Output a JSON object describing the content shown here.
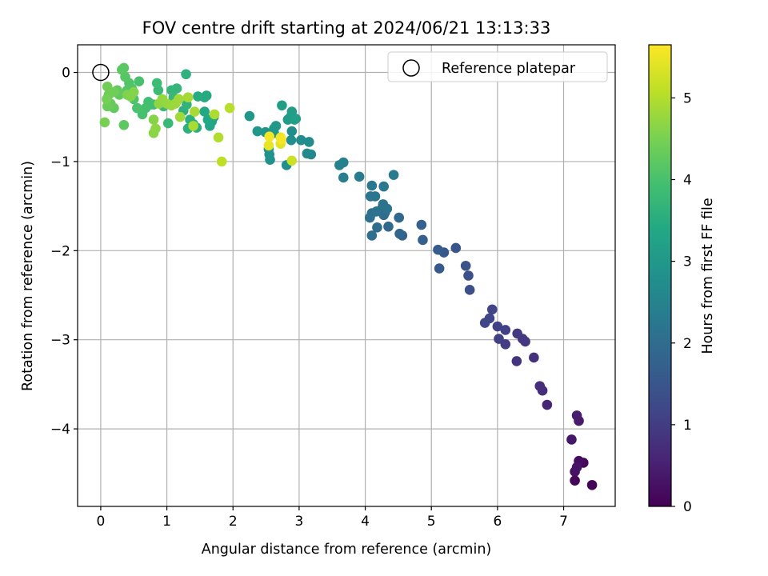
{
  "chart_data": {
    "type": "scatter",
    "title": "FOV centre drift starting at 2024/06/21 13:13:33",
    "xlabel": "Angular distance from reference (arcmin)",
    "ylabel": "Rotation from reference (arcmin)",
    "xlim": [
      -0.35,
      7.78
    ],
    "ylim": [
      -4.87,
      0.31
    ],
    "xticks": [
      0,
      1,
      2,
      3,
      4,
      5,
      6,
      7
    ],
    "xtick_labels": [
      "0",
      "1",
      "2",
      "3",
      "4",
      "5",
      "6",
      "7"
    ],
    "yticks": [
      0,
      -1,
      -2,
      -3,
      -4
    ],
    "ytick_labels": [
      "0",
      "−1",
      "−2",
      "−3",
      "−4"
    ],
    "grid": true,
    "legend": {
      "label": "Reference platepar",
      "placement": "top-right"
    },
    "reference_point": {
      "x": 0,
      "y": 0
    },
    "colorbar": {
      "label": "Hours from first FF file",
      "min": 0,
      "max": 5.65,
      "ticks": [
        0,
        1,
        2,
        3,
        4,
        5
      ],
      "tick_labels": [
        "0",
        "1",
        "2",
        "3",
        "4",
        "5"
      ],
      "colormap": "viridis"
    },
    "points": [
      [
        7.43,
        -4.63,
        0.05
      ],
      [
        7.17,
        -4.58,
        0.08
      ],
      [
        7.3,
        -4.38,
        0.12
      ],
      [
        7.23,
        -4.36,
        0.18
      ],
      [
        7.17,
        -4.48,
        0.25
      ],
      [
        7.2,
        -4.43,
        0.3
      ],
      [
        7.12,
        -4.12,
        0.35
      ],
      [
        7.23,
        -3.91,
        0.4
      ],
      [
        7.2,
        -3.85,
        0.45
      ],
      [
        6.75,
        -3.73,
        0.6
      ],
      [
        6.68,
        -3.57,
        0.7
      ],
      [
        6.64,
        -3.52,
        0.75
      ],
      [
        6.55,
        -3.2,
        0.8
      ],
      [
        6.29,
        -3.24,
        0.85
      ],
      [
        6.42,
        -3.02,
        0.9
      ],
      [
        6.38,
        -2.99,
        0.92
      ],
      [
        6.3,
        -2.93,
        0.95
      ],
      [
        6.12,
        -3.05,
        1.0
      ],
      [
        6.02,
        -2.99,
        1.05
      ],
      [
        6.12,
        -2.89,
        1.08
      ],
      [
        6.0,
        -2.85,
        1.1
      ],
      [
        5.92,
        -2.66,
        1.15
      ],
      [
        5.88,
        -2.76,
        1.18
      ],
      [
        5.81,
        -2.81,
        1.2
      ],
      [
        5.58,
        -2.44,
        1.35
      ],
      [
        5.56,
        -2.28,
        1.4
      ],
      [
        5.52,
        -2.17,
        1.45
      ],
      [
        5.37,
        -1.97,
        1.5
      ],
      [
        5.19,
        -2.02,
        1.55
      ],
      [
        5.12,
        -2.2,
        1.6
      ],
      [
        5.1,
        -1.99,
        1.65
      ],
      [
        4.87,
        -1.88,
        1.7
      ],
      [
        4.85,
        -1.71,
        1.75
      ],
      [
        4.56,
        -1.83,
        1.8
      ],
      [
        4.52,
        -1.81,
        1.85
      ],
      [
        4.51,
        -1.63,
        1.9
      ],
      [
        4.35,
        -1.73,
        1.92
      ],
      [
        4.3,
        -1.57,
        1.95
      ],
      [
        4.28,
        -1.6,
        1.98
      ],
      [
        4.25,
        -1.53,
        2.0
      ],
      [
        4.18,
        -1.74,
        2.02
      ],
      [
        4.1,
        -1.83,
        2.05
      ],
      [
        4.07,
        -1.63,
        2.08
      ],
      [
        4.1,
        -1.58,
        2.1
      ],
      [
        4.17,
        -1.56,
        2.12
      ],
      [
        4.27,
        -1.48,
        2.15
      ],
      [
        4.33,
        -1.53,
        2.18
      ],
      [
        4.08,
        -1.39,
        2.2
      ],
      [
        4.15,
        -1.39,
        2.22
      ],
      [
        4.1,
        -1.27,
        2.25
      ],
      [
        4.28,
        -1.28,
        2.28
      ],
      [
        4.43,
        -1.15,
        2.3
      ],
      [
        3.91,
        -1.17,
        2.35
      ],
      [
        3.67,
        -1.18,
        2.4
      ],
      [
        3.67,
        -1.01,
        2.45
      ],
      [
        3.61,
        -1.04,
        2.5
      ],
      [
        3.18,
        -0.92,
        2.6
      ],
      [
        3.12,
        -0.91,
        2.65
      ],
      [
        3.15,
        -0.78,
        2.7
      ],
      [
        3.03,
        -0.76,
        2.72
      ],
      [
        2.89,
        -0.66,
        2.75
      ],
      [
        2.88,
        -0.76,
        2.78
      ],
      [
        2.81,
        -1.04,
        2.8
      ],
      [
        2.56,
        -0.98,
        2.82
      ],
      [
        2.55,
        -0.92,
        2.85
      ],
      [
        2.54,
        -0.86,
        2.88
      ],
      [
        2.62,
        -0.68,
        2.9
      ],
      [
        2.49,
        -0.67,
        2.92
      ],
      [
        2.37,
        -0.66,
        2.95
      ],
      [
        2.25,
        -0.49,
        2.98
      ],
      [
        2.65,
        -0.6,
        3.0
      ],
      [
        2.62,
        -0.63,
        3.02
      ],
      [
        2.83,
        -0.53,
        3.05
      ],
      [
        2.87,
        -0.5,
        3.08
      ],
      [
        2.95,
        -0.52,
        3.1
      ],
      [
        2.89,
        -0.44,
        3.12
      ],
      [
        2.74,
        -0.37,
        3.15
      ],
      [
        2.93,
        -0.53,
        3.18
      ],
      [
        1.71,
        -0.5,
        3.3
      ],
      [
        1.68,
        -0.55,
        3.32
      ],
      [
        1.65,
        -0.6,
        3.35
      ],
      [
        1.62,
        -0.53,
        3.38
      ],
      [
        1.57,
        -0.44,
        3.4
      ],
      [
        1.6,
        -0.26,
        3.42
      ],
      [
        1.57,
        -0.28,
        3.45
      ],
      [
        1.47,
        -0.27,
        3.48
      ],
      [
        1.45,
        -0.62,
        3.5
      ],
      [
        1.4,
        -0.58,
        3.52
      ],
      [
        1.35,
        -0.53,
        3.55
      ],
      [
        1.32,
        -0.63,
        3.58
      ],
      [
        1.29,
        -0.02,
        3.6
      ],
      [
        1.25,
        -0.43,
        3.62
      ],
      [
        1.3,
        -0.36,
        3.65
      ],
      [
        1.15,
        -0.18,
        3.7
      ],
      [
        1.07,
        -0.2,
        3.72
      ],
      [
        1.1,
        -0.28,
        3.75
      ],
      [
        1.02,
        -0.57,
        3.78
      ],
      [
        0.95,
        -0.38,
        3.8
      ],
      [
        0.87,
        -0.2,
        3.82
      ],
      [
        0.85,
        -0.12,
        3.85
      ],
      [
        0.8,
        -0.36,
        3.88
      ],
      [
        0.75,
        -0.36,
        3.9
      ],
      [
        0.72,
        -0.33,
        3.92
      ],
      [
        0.68,
        -0.4,
        3.95
      ],
      [
        0.63,
        -0.47,
        3.98
      ],
      [
        0.58,
        -0.1,
        4.0
      ],
      [
        0.55,
        -0.4,
        4.02
      ],
      [
        0.5,
        -0.3,
        4.05
      ],
      [
        0.47,
        -0.18,
        4.08
      ],
      [
        0.43,
        -0.12,
        4.1
      ],
      [
        0.4,
        -0.2,
        4.12
      ],
      [
        0.37,
        -0.05,
        4.15
      ],
      [
        0.35,
        0.05,
        4.18
      ],
      [
        0.32,
        0.03,
        4.2
      ],
      [
        0.35,
        -0.59,
        4.22
      ],
      [
        0.28,
        -0.25,
        4.25
      ],
      [
        0.25,
        -0.2,
        4.28
      ],
      [
        0.2,
        -0.4,
        4.3
      ],
      [
        0.15,
        -0.35,
        4.32
      ],
      [
        0.1,
        -0.38,
        4.35
      ],
      [
        0.12,
        -0.25,
        4.38
      ],
      [
        0.2,
        -0.22,
        4.4
      ],
      [
        0.1,
        -0.16,
        4.42
      ],
      [
        0.09,
        -0.3,
        4.45
      ],
      [
        0.06,
        -0.56,
        4.48
      ],
      [
        0.4,
        -0.25,
        4.55
      ],
      [
        0.45,
        -0.27,
        4.58
      ],
      [
        0.5,
        -0.22,
        4.6
      ],
      [
        0.8,
        -0.53,
        4.62
      ],
      [
        0.8,
        -0.68,
        4.65
      ],
      [
        0.83,
        -0.63,
        4.68
      ],
      [
        0.88,
        -0.35,
        4.7
      ],
      [
        0.93,
        -0.3,
        4.72
      ],
      [
        1.0,
        -0.35,
        4.75
      ],
      [
        1.07,
        -0.37,
        4.78
      ],
      [
        1.13,
        -0.35,
        4.8
      ],
      [
        1.18,
        -0.3,
        4.82
      ],
      [
        1.2,
        -0.5,
        4.85
      ],
      [
        1.32,
        -0.28,
        4.88
      ],
      [
        1.42,
        -0.44,
        4.9
      ],
      [
        1.4,
        -0.6,
        4.92
      ],
      [
        1.72,
        -0.47,
        4.95
      ],
      [
        1.78,
        -0.73,
        5.0
      ],
      [
        1.95,
        -0.4,
        5.05
      ],
      [
        1.83,
        -1.0,
        5.1
      ],
      [
        2.89,
        -0.99,
        5.2
      ],
      [
        2.72,
        -0.8,
        5.4
      ],
      [
        2.54,
        -0.82,
        5.45
      ],
      [
        2.72,
        -0.73,
        5.5
      ],
      [
        2.55,
        -0.72,
        5.55
      ],
      [
        2.73,
        -0.75,
        5.6
      ]
    ]
  }
}
